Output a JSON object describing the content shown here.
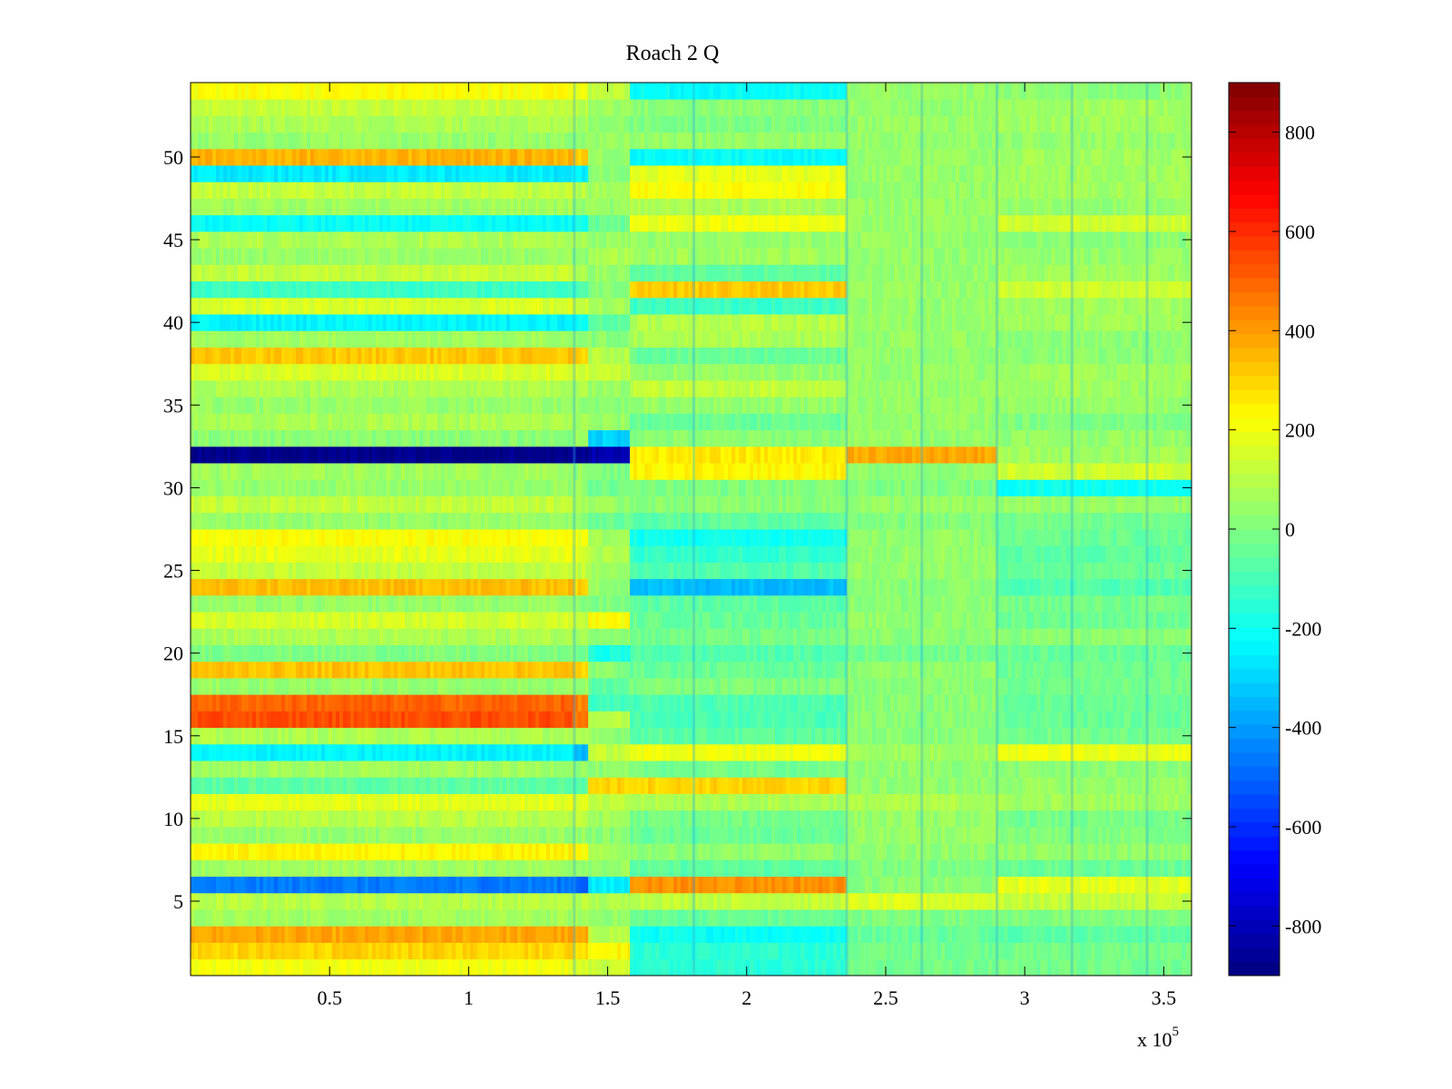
{
  "chart_data": {
    "type": "heatmap",
    "title": "Roach 2 Q",
    "xlabel": "",
    "ylabel": "",
    "x_multiplier_label": "x 10",
    "x_multiplier_exponent": "5",
    "xlim": [
      0,
      360000
    ],
    "ylim": [
      0.5,
      54.5
    ],
    "x_ticks": [
      50000,
      100000,
      150000,
      200000,
      250000,
      300000,
      350000
    ],
    "x_tick_labels": [
      "0.5",
      "1",
      "1.5",
      "2",
      "2.5",
      "3",
      "3.5"
    ],
    "y_ticks": [
      5,
      10,
      15,
      20,
      25,
      30,
      35,
      40,
      45,
      50
    ],
    "y_tick_labels": [
      "5",
      "10",
      "15",
      "20",
      "25",
      "30",
      "35",
      "40",
      "45",
      "50"
    ],
    "colorbar": {
      "colormap": "jet",
      "clim": [
        -900,
        900
      ],
      "ticks": [
        -800,
        -600,
        -400,
        -200,
        0,
        200,
        400,
        600,
        800
      ],
      "tick_labels": [
        "-800",
        "-600",
        "-400",
        "-200",
        "0",
        "200",
        "400",
        "600",
        "800"
      ]
    },
    "grid": false,
    "column_segments_x": [
      0,
      138000,
      143000,
      158000,
      236000,
      290000,
      360000
    ],
    "rows": [
      {
        "channel": 1,
        "values": [
          200,
          150,
          130,
          -150,
          -20,
          -20
        ]
      },
      {
        "channel": 2,
        "values": [
          300,
          280,
          240,
          -150,
          -20,
          -20
        ]
      },
      {
        "channel": 3,
        "values": [
          380,
          360,
          100,
          -210,
          -40,
          -60
        ]
      },
      {
        "channel": 4,
        "values": [
          60,
          60,
          40,
          -40,
          0,
          0
        ]
      },
      {
        "channel": 5,
        "values": [
          100,
          100,
          80,
          120,
          160,
          120
        ]
      },
      {
        "channel": 6,
        "values": [
          -460,
          -500,
          -260,
          420,
          20,
          180
        ]
      },
      {
        "channel": 7,
        "values": [
          60,
          50,
          40,
          -60,
          0,
          -40
        ]
      },
      {
        "channel": 8,
        "values": [
          240,
          220,
          60,
          30,
          30,
          30
        ]
      },
      {
        "channel": 9,
        "values": [
          40,
          40,
          20,
          -40,
          40,
          0
        ]
      },
      {
        "channel": 10,
        "values": [
          100,
          100,
          60,
          -20,
          40,
          -20
        ]
      },
      {
        "channel": 11,
        "values": [
          180,
          160,
          100,
          80,
          80,
          60
        ]
      },
      {
        "channel": 12,
        "values": [
          -60,
          -60,
          300,
          300,
          30,
          40
        ]
      },
      {
        "channel": 13,
        "values": [
          60,
          40,
          20,
          -20,
          30,
          20
        ]
      },
      {
        "channel": 14,
        "values": [
          -240,
          -340,
          120,
          200,
          60,
          200
        ]
      },
      {
        "channel": 15,
        "values": [
          80,
          60,
          30,
          -60,
          20,
          -20
        ]
      },
      {
        "channel": 16,
        "values": [
          540,
          480,
          100,
          -90,
          20,
          -40
        ]
      },
      {
        "channel": 17,
        "values": [
          500,
          440,
          -120,
          -90,
          20,
          -40
        ]
      },
      {
        "channel": 18,
        "values": [
          40,
          40,
          -60,
          0,
          20,
          -20
        ]
      },
      {
        "channel": 19,
        "values": [
          330,
          300,
          20,
          -40,
          30,
          -30
        ]
      },
      {
        "channel": 20,
        "values": [
          0,
          -20,
          -180,
          -80,
          -20,
          -40
        ]
      },
      {
        "channel": 21,
        "values": [
          80,
          60,
          40,
          -20,
          20,
          20
        ]
      },
      {
        "channel": 22,
        "values": [
          150,
          120,
          220,
          -40,
          30,
          -30
        ]
      },
      {
        "channel": 23,
        "values": [
          40,
          20,
          0,
          -60,
          20,
          -20
        ]
      },
      {
        "channel": 24,
        "values": [
          340,
          300,
          40,
          -340,
          20,
          -80
        ]
      },
      {
        "channel": 25,
        "values": [
          120,
          120,
          60,
          -80,
          40,
          -40
        ]
      },
      {
        "channel": 26,
        "values": [
          180,
          160,
          80,
          -140,
          40,
          -60
        ]
      },
      {
        "channel": 27,
        "values": [
          220,
          200,
          60,
          -200,
          30,
          -40
        ]
      },
      {
        "channel": 28,
        "values": [
          40,
          20,
          -40,
          -60,
          0,
          -20
        ]
      },
      {
        "channel": 29,
        "values": [
          120,
          80,
          40,
          20,
          40,
          40
        ]
      },
      {
        "channel": 30,
        "values": [
          40,
          40,
          -20,
          0,
          0,
          -200
        ]
      },
      {
        "channel": 31,
        "values": [
          60,
          40,
          0,
          240,
          30,
          140
        ]
      },
      {
        "channel": 32,
        "values": [
          -880,
          -880,
          -820,
          260,
          380,
          60
        ]
      },
      {
        "channel": 33,
        "values": [
          20,
          40,
          -300,
          20,
          40,
          40
        ]
      },
      {
        "channel": 34,
        "values": [
          80,
          60,
          40,
          -40,
          40,
          0
        ]
      },
      {
        "channel": 35,
        "values": [
          40,
          40,
          20,
          40,
          40,
          40
        ]
      },
      {
        "channel": 36,
        "values": [
          80,
          80,
          40,
          120,
          40,
          60
        ]
      },
      {
        "channel": 37,
        "values": [
          160,
          140,
          120,
          40,
          40,
          60
        ]
      },
      {
        "channel": 38,
        "values": [
          320,
          300,
          100,
          -40,
          30,
          20
        ]
      },
      {
        "channel": 39,
        "values": [
          60,
          40,
          20,
          80,
          40,
          20
        ]
      },
      {
        "channel": 40,
        "values": [
          -240,
          -220,
          -60,
          100,
          40,
          60
        ]
      },
      {
        "channel": 41,
        "values": [
          160,
          140,
          60,
          -120,
          40,
          60
        ]
      },
      {
        "channel": 42,
        "values": [
          -120,
          -100,
          20,
          320,
          40,
          140
        ]
      },
      {
        "channel": 43,
        "values": [
          120,
          100,
          40,
          -60,
          40,
          60
        ]
      },
      {
        "channel": 44,
        "values": [
          40,
          20,
          80,
          60,
          40,
          40
        ]
      },
      {
        "channel": 45,
        "values": [
          80,
          60,
          40,
          40,
          40,
          20
        ]
      },
      {
        "channel": 46,
        "values": [
          -220,
          -200,
          -40,
          200,
          40,
          140
        ]
      },
      {
        "channel": 47,
        "values": [
          60,
          40,
          40,
          80,
          40,
          40
        ]
      },
      {
        "channel": 48,
        "values": [
          120,
          100,
          60,
          220,
          40,
          60
        ]
      },
      {
        "channel": 49,
        "values": [
          -260,
          -240,
          20,
          180,
          40,
          60
        ]
      },
      {
        "channel": 50,
        "values": [
          360,
          320,
          40,
          -220,
          40,
          60
        ]
      },
      {
        "channel": 51,
        "values": [
          40,
          40,
          40,
          40,
          40,
          40
        ]
      },
      {
        "channel": 52,
        "values": [
          80,
          60,
          40,
          0,
          40,
          60
        ]
      },
      {
        "channel": 53,
        "values": [
          120,
          100,
          60,
          20,
          40,
          60
        ]
      },
      {
        "channel": 54,
        "values": [
          220,
          200,
          120,
          -220,
          40,
          20
        ]
      }
    ]
  }
}
